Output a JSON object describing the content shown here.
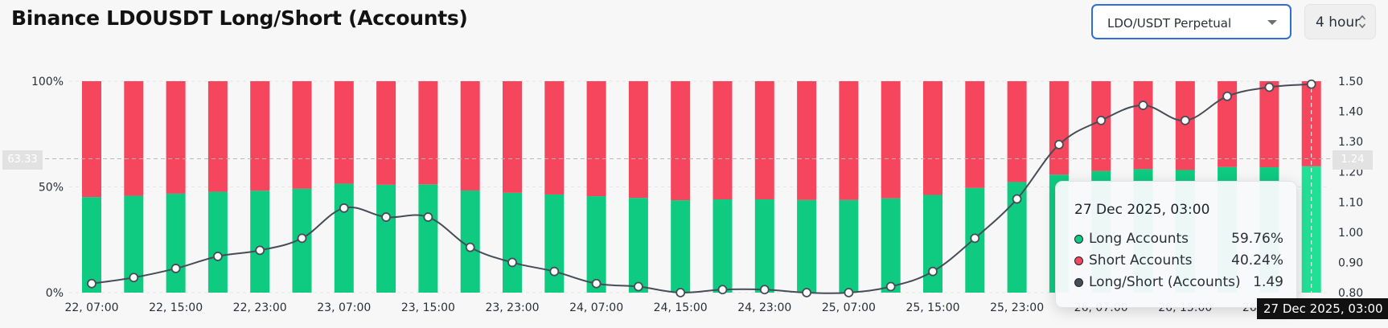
{
  "header": {
    "title": "Binance LDOUSDT Long/Short (Accounts)",
    "pair_select": {
      "value": "LDO/USDT Perpetual"
    },
    "interval_select": {
      "value": "4 hour"
    }
  },
  "crosshair": {
    "left_value": "63.33",
    "right_value": "1.24",
    "x_label": "27 Dec 2025, 03:00"
  },
  "tooltip": {
    "date": "27 Dec 2025, 03:00",
    "rows": [
      {
        "name": "Long Accounts",
        "value": "59.76%",
        "color": "#0ecb81"
      },
      {
        "name": "Short Accounts",
        "value": "40.24%",
        "color": "#f6465d"
      },
      {
        "name": "Long/Short (Accounts)",
        "value": "1.49",
        "color": "#474d57"
      }
    ]
  },
  "colors": {
    "long": "#0ecb81",
    "short": "#f6465d",
    "ratio_line": "#474d57",
    "grid": "#e6e6e6",
    "crosshair": "#b9b9b9"
  },
  "chart_data": {
    "type": "bar",
    "stacked": true,
    "categories": [
      "22, 07:00",
      "22, 11:00",
      "22, 15:00",
      "22, 19:00",
      "22, 23:00",
      "23, 03:00",
      "23, 07:00",
      "23, 11:00",
      "23, 15:00",
      "23, 19:00",
      "23, 23:00",
      "24, 03:00",
      "24, 07:00",
      "24, 11:00",
      "24, 15:00",
      "24, 19:00",
      "24, 23:00",
      "25, 03:00",
      "25, 07:00",
      "25, 11:00",
      "25, 15:00",
      "25, 19:00",
      "25, 23:00",
      "26, 03:00",
      "26, 07:00",
      "26, 11:00",
      "26, 15:00",
      "26, 19:00",
      "26, 23:00",
      "27, 03:00"
    ],
    "x_tick_labels": [
      "22, 07:00",
      "22, 15:00",
      "22, 23:00",
      "23, 07:00",
      "23, 15:00",
      "23, 23:00",
      "24, 07:00",
      "24, 15:00",
      "24, 23:00",
      "25, 07:00",
      "25, 15:00",
      "25, 23:00",
      "26, 07:00",
      "26, 15:00",
      "26, 23:00"
    ],
    "series": [
      {
        "name": "Long Accounts",
        "axis": "left",
        "values": [
          45.2,
          45.8,
          46.8,
          47.7,
          48.2,
          49.1,
          51.5,
          51.0,
          51.2,
          48.3,
          47.2,
          46.4,
          45.6,
          44.8,
          43.7,
          44.1,
          44.1,
          43.8,
          43.8,
          44.6,
          46.2,
          49.5,
          52.3,
          55.8,
          57.5,
          58.4,
          58.0,
          59.4,
          59.3,
          59.76
        ]
      },
      {
        "name": "Short Accounts",
        "axis": "left",
        "values": [
          54.8,
          54.2,
          53.2,
          52.3,
          51.8,
          50.9,
          48.5,
          49.0,
          48.8,
          51.7,
          52.8,
          53.6,
          54.4,
          55.2,
          56.3,
          55.9,
          55.9,
          56.2,
          56.2,
          55.4,
          53.8,
          50.5,
          47.7,
          44.2,
          42.5,
          41.6,
          42.0,
          40.6,
          40.7,
          40.24
        ]
      },
      {
        "name": "Long/Short (Accounts)",
        "axis": "right",
        "values": [
          0.83,
          0.85,
          0.88,
          0.92,
          0.94,
          0.98,
          1.08,
          1.05,
          1.05,
          0.95,
          0.9,
          0.87,
          0.83,
          0.82,
          0.8,
          0.81,
          0.81,
          0.8,
          0.8,
          0.82,
          0.87,
          0.98,
          1.11,
          1.29,
          1.37,
          1.42,
          1.37,
          1.45,
          1.48,
          1.49
        ]
      }
    ],
    "y_left": {
      "range": [
        0,
        100
      ],
      "ticks": [
        "0%",
        "50%",
        "100%"
      ]
    },
    "y_right": {
      "range": [
        0.8,
        1.5
      ],
      "ticks": [
        "0.80",
        "0.90",
        "1.00",
        "1.10",
        "1.20",
        "1.30",
        "1.40",
        "1.50"
      ]
    },
    "grid": true,
    "legend": "none"
  }
}
